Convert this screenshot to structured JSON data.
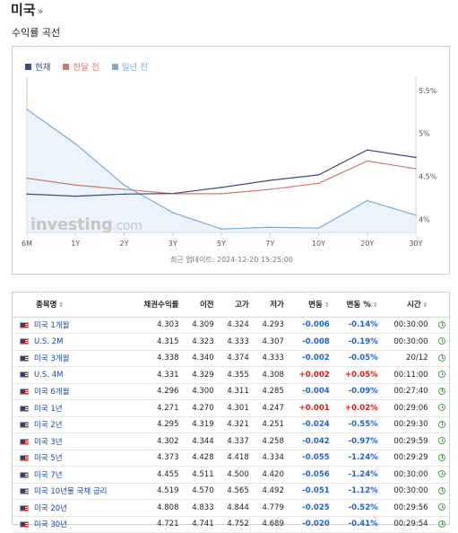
{
  "page": {
    "title": "미국",
    "arrow": "»",
    "section_title": "수익률 곡선"
  },
  "chart_data": {
    "type": "line",
    "categories": [
      "6M",
      "1Y",
      "2Y",
      "3Y",
      "5Y",
      "7Y",
      "10Y",
      "20Y",
      "30Y"
    ],
    "series": [
      {
        "name": "현재",
        "color": "#3c4d7a",
        "values": [
          4.296,
          4.271,
          4.295,
          4.302,
          4.373,
          4.455,
          4.519,
          4.808,
          4.721
        ]
      },
      {
        "name": "한달 전",
        "color": "#c97a72",
        "values": [
          4.48,
          4.4,
          4.35,
          4.3,
          4.3,
          4.35,
          4.42,
          4.68,
          4.59
        ]
      },
      {
        "name": "일년 전",
        "color": "#7aaed6",
        "values": [
          5.28,
          4.88,
          4.4,
          4.08,
          3.89,
          3.91,
          3.9,
          4.22,
          4.05
        ]
      }
    ],
    "yticks": [
      "5.5%",
      "5%",
      "4.5%",
      "4%"
    ],
    "ytick_values": [
      5.5,
      5.0,
      4.5,
      4.0
    ],
    "ylim": [
      3.85,
      5.55
    ],
    "watermark": "investing",
    "watermark_suffix": ".com",
    "updated": "최근 업데이트: 2024-12-20 15:25:00"
  },
  "table": {
    "headers": {
      "name": "종목명",
      "yield": "채권수익률",
      "prev": "이전",
      "high": "고가",
      "low": "저가",
      "change": "변동",
      "change_pct": "변동 %",
      "time": "시간"
    },
    "rows": [
      {
        "name": "미국 1개월",
        "yield": "4.303",
        "prev": "4.309",
        "high": "4.324",
        "low": "4.293",
        "change": "-0.006",
        "change_pct": "-0.14%",
        "time": "00:30:00",
        "dir": "neg"
      },
      {
        "name": "U.S. 2M",
        "yield": "4.315",
        "prev": "4.323",
        "high": "4.333",
        "low": "4.307",
        "change": "-0.008",
        "change_pct": "-0.19%",
        "time": "00:30:00",
        "dir": "neg"
      },
      {
        "name": "미국 3개월",
        "yield": "4.338",
        "prev": "4.340",
        "high": "4.374",
        "low": "4.333",
        "change": "-0.002",
        "change_pct": "-0.05%",
        "time": "20/12",
        "dir": "neg"
      },
      {
        "name": "U.S. 4M",
        "yield": "4.331",
        "prev": "4.329",
        "high": "4.355",
        "low": "4.308",
        "change": "+0.002",
        "change_pct": "+0.05%",
        "time": "00:11:00",
        "dir": "pos"
      },
      {
        "name": "미국 6개월",
        "yield": "4.296",
        "prev": "4.300",
        "high": "4.311",
        "low": "4.285",
        "change": "-0.004",
        "change_pct": "-0.09%",
        "time": "00:27:40",
        "dir": "neg"
      },
      {
        "name": "미국 1년",
        "yield": "4.271",
        "prev": "4.270",
        "high": "4.301",
        "low": "4.247",
        "change": "+0.001",
        "change_pct": "+0.02%",
        "time": "00:29:06",
        "dir": "pos"
      },
      {
        "name": "미국 2년",
        "yield": "4.295",
        "prev": "4.319",
        "high": "4.321",
        "low": "4.251",
        "change": "-0.024",
        "change_pct": "-0.55%",
        "time": "00:29:30",
        "dir": "neg"
      },
      {
        "name": "미국 3년",
        "yield": "4.302",
        "prev": "4.344",
        "high": "4.337",
        "low": "4.258",
        "change": "-0.042",
        "change_pct": "-0.97%",
        "time": "00:29:59",
        "dir": "neg"
      },
      {
        "name": "미국 5년",
        "yield": "4.373",
        "prev": "4.428",
        "high": "4.418",
        "low": "4.334",
        "change": "-0.055",
        "change_pct": "-1.24%",
        "time": "00:29:29",
        "dir": "neg"
      },
      {
        "name": "미국 7년",
        "yield": "4.455",
        "prev": "4.511",
        "high": "4.500",
        "low": "4.420",
        "change": "-0.056",
        "change_pct": "-1.24%",
        "time": "00:30:00",
        "dir": "neg"
      },
      {
        "name": "미국 10년물 국채 금리",
        "yield": "4.519",
        "prev": "4.570",
        "high": "4.565",
        "low": "4.492",
        "change": "-0.051",
        "change_pct": "-1.12%",
        "time": "00:30:00",
        "dir": "neg"
      },
      {
        "name": "미국 20년",
        "yield": "4.808",
        "prev": "4.833",
        "high": "4.844",
        "low": "4.779",
        "change": "-0.025",
        "change_pct": "-0.52%",
        "time": "00:29:56",
        "dir": "neg"
      },
      {
        "name": "미국 30년",
        "yield": "4.721",
        "prev": "4.741",
        "high": "4.752",
        "low": "4.689",
        "change": "-0.020",
        "change_pct": "-0.41%",
        "time": "00:29:54",
        "dir": "neg"
      }
    ]
  }
}
